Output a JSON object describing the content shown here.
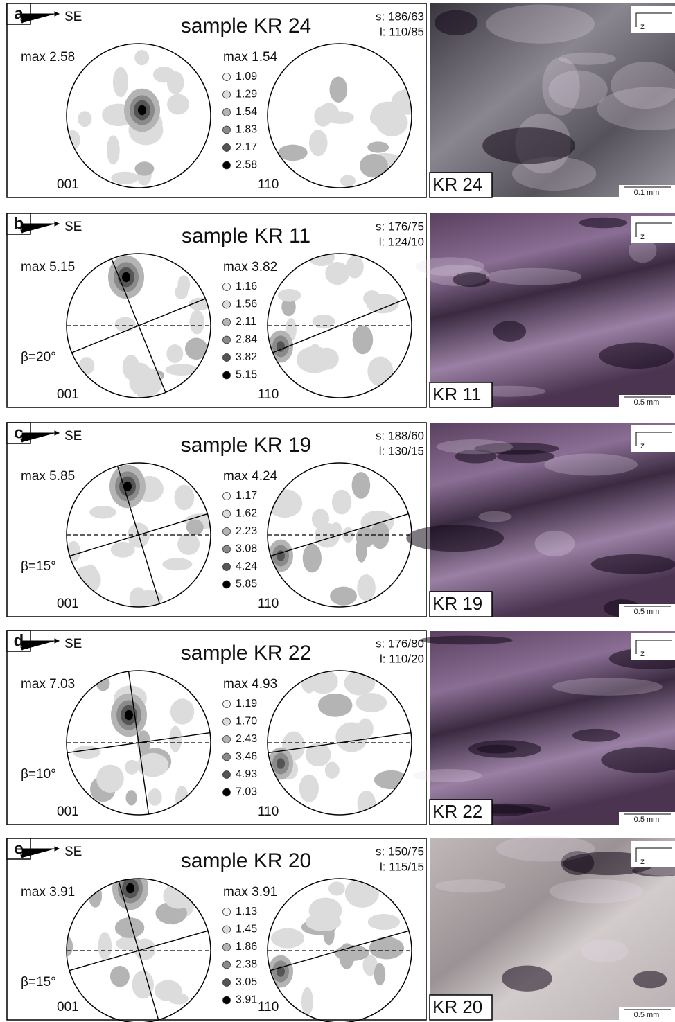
{
  "panels": [
    {
      "label": "a",
      "direction": "SE",
      "sample": "sample KR 24",
      "s": "s: 186/63",
      "l": "l: 110/85",
      "max_001": "max 2.58",
      "max_110": "max 1.54",
      "levels": [
        "1.09",
        "1.29",
        "1.54",
        "1.83",
        "2.17",
        "2.58"
      ],
      "pole_001": "001",
      "pole_110": "110",
      "axis": "z",
      "image_label": "KR 24",
      "scale": "0.1 mm"
    },
    {
      "label": "b",
      "direction": "SE",
      "sample": "sample KR 11",
      "s": "s: 176/75",
      "l": "l: 124/10",
      "max_001": "max 5.15",
      "max_110": "max 3.82",
      "levels": [
        "1.16",
        "1.56",
        "2.11",
        "2.84",
        "3.82",
        "5.15"
      ],
      "beta": "β=20°",
      "pole_001": "001",
      "pole_110": "110",
      "axis": "z",
      "image_label": "KR 11",
      "scale": "0.5 mm"
    },
    {
      "label": "c",
      "direction": "SE",
      "sample": "sample KR 19",
      "s": "s: 188/60",
      "l": "l: 130/15",
      "max_001": "max 5.85",
      "max_110": "max 4.24",
      "levels": [
        "1.17",
        "1.62",
        "2.23",
        "3.08",
        "4.24",
        "5.85"
      ],
      "beta": "β=15°",
      "pole_001": "001",
      "pole_110": "110",
      "axis": "z",
      "image_label": "KR 19",
      "scale": "0.5 mm"
    },
    {
      "label": "d",
      "direction": "SE",
      "sample": "sample KR 22",
      "s": "s: 176/80",
      "l": "l: 110/20",
      "max_001": "max 7.03",
      "max_110": "max 4.93",
      "levels": [
        "1.19",
        "1.70",
        "2.43",
        "3.46",
        "4.93",
        "7.03"
      ],
      "beta": "β=10°",
      "pole_001": "001",
      "pole_110": "110",
      "axis": "z",
      "image_label": "KR 22",
      "scale": "0.5 mm"
    },
    {
      "label": "e",
      "direction": "SE",
      "sample": "sample KR 20",
      "s": "s: 150/75",
      "l": "l: 115/15",
      "max_001": "max 3.91",
      "max_110": "max 3.91",
      "levels": [
        "1.13",
        "1.45",
        "1.86",
        "2.38",
        "3.05",
        "3.91"
      ],
      "beta": "β=15°",
      "pole_001": "001",
      "pole_110": "110",
      "axis": "z",
      "image_label": "KR 20",
      "scale": "0.5 mm"
    }
  ]
}
